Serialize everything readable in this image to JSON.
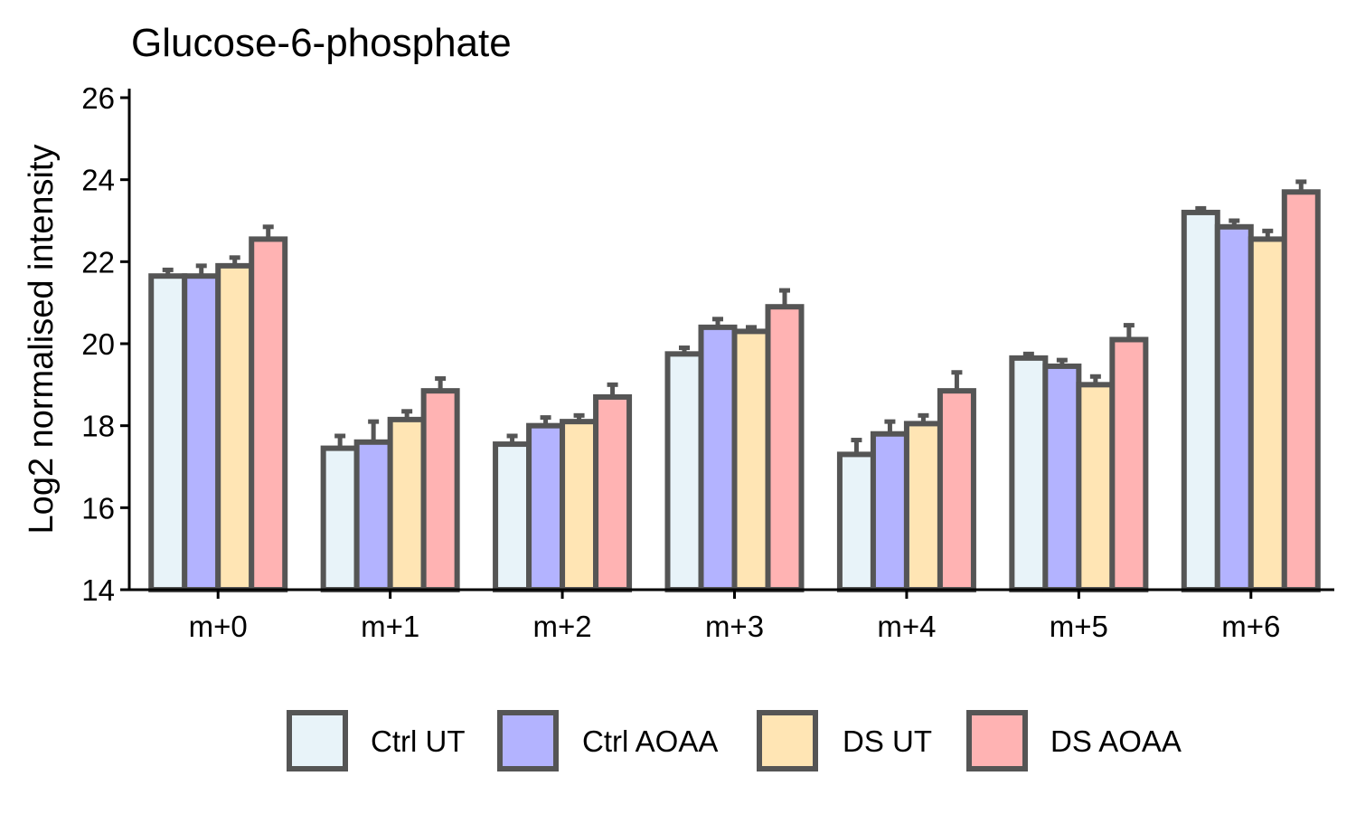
{
  "chart_data": {
    "type": "bar",
    "title": "Glucose-6-phosphate",
    "ylabel": "Log2 normalised intensity",
    "xlabel": "",
    "ylim": [
      14,
      26
    ],
    "yticks": [
      14,
      16,
      18,
      20,
      22,
      24,
      26
    ],
    "categories": [
      "m+0",
      "m+1",
      "m+2",
      "m+3",
      "m+4",
      "m+5",
      "m+6"
    ],
    "grid": false,
    "legend_position": "bottom",
    "series": [
      {
        "name": "Ctrl UT",
        "color": "#E8F3F9",
        "values": [
          21.65,
          17.45,
          17.55,
          19.75,
          17.3,
          19.65,
          23.2
        ],
        "errors": [
          0.15,
          0.3,
          0.2,
          0.15,
          0.35,
          0.1,
          0.1
        ]
      },
      {
        "name": "Ctrl AOAA",
        "color": "#B3B3FF",
        "values": [
          21.65,
          17.6,
          18.0,
          20.4,
          17.8,
          19.45,
          22.85
        ],
        "errors": [
          0.25,
          0.5,
          0.2,
          0.2,
          0.3,
          0.15,
          0.15
        ]
      },
      {
        "name": "DS UT",
        "color": "#FFE5B4",
        "values": [
          21.9,
          18.15,
          18.1,
          20.3,
          18.05,
          19.0,
          22.55
        ],
        "errors": [
          0.2,
          0.2,
          0.15,
          0.1,
          0.2,
          0.2,
          0.2
        ]
      },
      {
        "name": "DS AOAA",
        "color": "#FFB3B3",
        "values": [
          22.55,
          18.85,
          18.7,
          20.9,
          18.85,
          20.1,
          23.7
        ],
        "errors": [
          0.3,
          0.3,
          0.3,
          0.4,
          0.45,
          0.35,
          0.25
        ]
      }
    ]
  }
}
